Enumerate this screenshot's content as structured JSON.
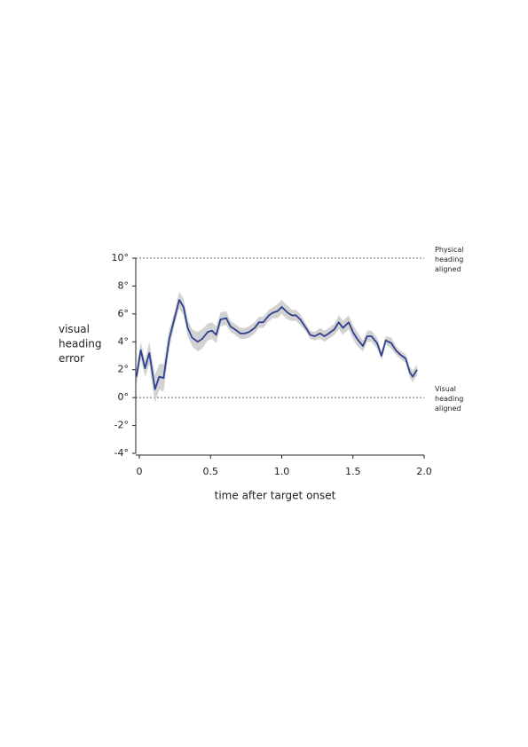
{
  "chart_data": {
    "type": "line",
    "x_label": "time after target onset",
    "y_label": "visual heading error",
    "xlim": [
      -0.025,
      2.0
    ],
    "ylim": [
      -4,
      10
    ],
    "xticks": [
      0,
      0.5,
      {
        "value": 1,
        "label": "1.0"
      },
      1.5,
      {
        "value": 2,
        "label": "2.0"
      }
    ],
    "yticks": [
      {
        "value": -4,
        "label": "-4°"
      },
      {
        "value": -2,
        "label": "-2°"
      },
      {
        "value": 0,
        "label": "0°"
      },
      {
        "value": 2,
        "label": "2°"
      },
      {
        "value": 4,
        "label": "4°"
      },
      {
        "value": 6,
        "label": "6°"
      },
      {
        "value": 8,
        "label": "8°"
      },
      {
        "value": 10,
        "label": "10°"
      }
    ],
    "reference_lines": [
      {
        "value": 10,
        "label": "Physical heading aligned"
      },
      {
        "value": 0,
        "label": "Visual heading aligned"
      }
    ],
    "x": [
      -0.02,
      0.01,
      0.04,
      0.07,
      0.11,
      0.14,
      0.17,
      0.21,
      0.25,
      0.28,
      0.31,
      0.34,
      0.37,
      0.41,
      0.44,
      0.48,
      0.51,
      0.54,
      0.57,
      0.61,
      0.64,
      0.67,
      0.71,
      0.74,
      0.77,
      0.81,
      0.84,
      0.87,
      0.91,
      0.94,
      0.97,
      1.0,
      1.04,
      1.07,
      1.1,
      1.13,
      1.17,
      1.2,
      1.23,
      1.27,
      1.3,
      1.33,
      1.37,
      1.4,
      1.43,
      1.47,
      1.5,
      1.53,
      1.57,
      1.6,
      1.63,
      1.67,
      1.7,
      1.73,
      1.77,
      1.8,
      1.83,
      1.87,
      1.9,
      1.92,
      1.95
    ],
    "series": [
      {
        "color": "#2e3f8f",
        "band_color": "#d2d2d2",
        "values": [
          1.5,
          3.4,
          2.1,
          3.2,
          0.6,
          1.5,
          1.4,
          4.2,
          5.8,
          7.0,
          6.5,
          5.0,
          4.3,
          4.0,
          4.2,
          4.7,
          4.8,
          4.5,
          5.6,
          5.7,
          5.1,
          4.9,
          4.6,
          4.6,
          4.7,
          5.0,
          5.4,
          5.4,
          5.9,
          6.1,
          6.2,
          6.5,
          6.1,
          5.9,
          5.9,
          5.6,
          5.0,
          4.5,
          4.4,
          4.6,
          4.4,
          4.6,
          4.9,
          5.4,
          5.0,
          5.4,
          4.7,
          4.2,
          3.7,
          4.4,
          4.4,
          3.9,
          3.0,
          4.1,
          3.9,
          3.4,
          3.1,
          2.8,
          1.8,
          1.5,
          2.0
        ],
        "errors": [
          0.6,
          0.6,
          0.6,
          0.8,
          1.0,
          0.9,
          1.0,
          0.7,
          0.5,
          0.6,
          0.6,
          0.6,
          0.6,
          0.7,
          0.7,
          0.6,
          0.6,
          0.6,
          0.5,
          0.5,
          0.4,
          0.4,
          0.4,
          0.4,
          0.4,
          0.4,
          0.4,
          0.4,
          0.4,
          0.4,
          0.5,
          0.5,
          0.5,
          0.4,
          0.4,
          0.4,
          0.3,
          0.3,
          0.3,
          0.4,
          0.4,
          0.4,
          0.4,
          0.5,
          0.5,
          0.5,
          0.5,
          0.5,
          0.4,
          0.4,
          0.4,
          0.4,
          0.3,
          0.3,
          0.4,
          0.3,
          0.3,
          0.3,
          0.4,
          0.4,
          0.4
        ]
      }
    ]
  }
}
